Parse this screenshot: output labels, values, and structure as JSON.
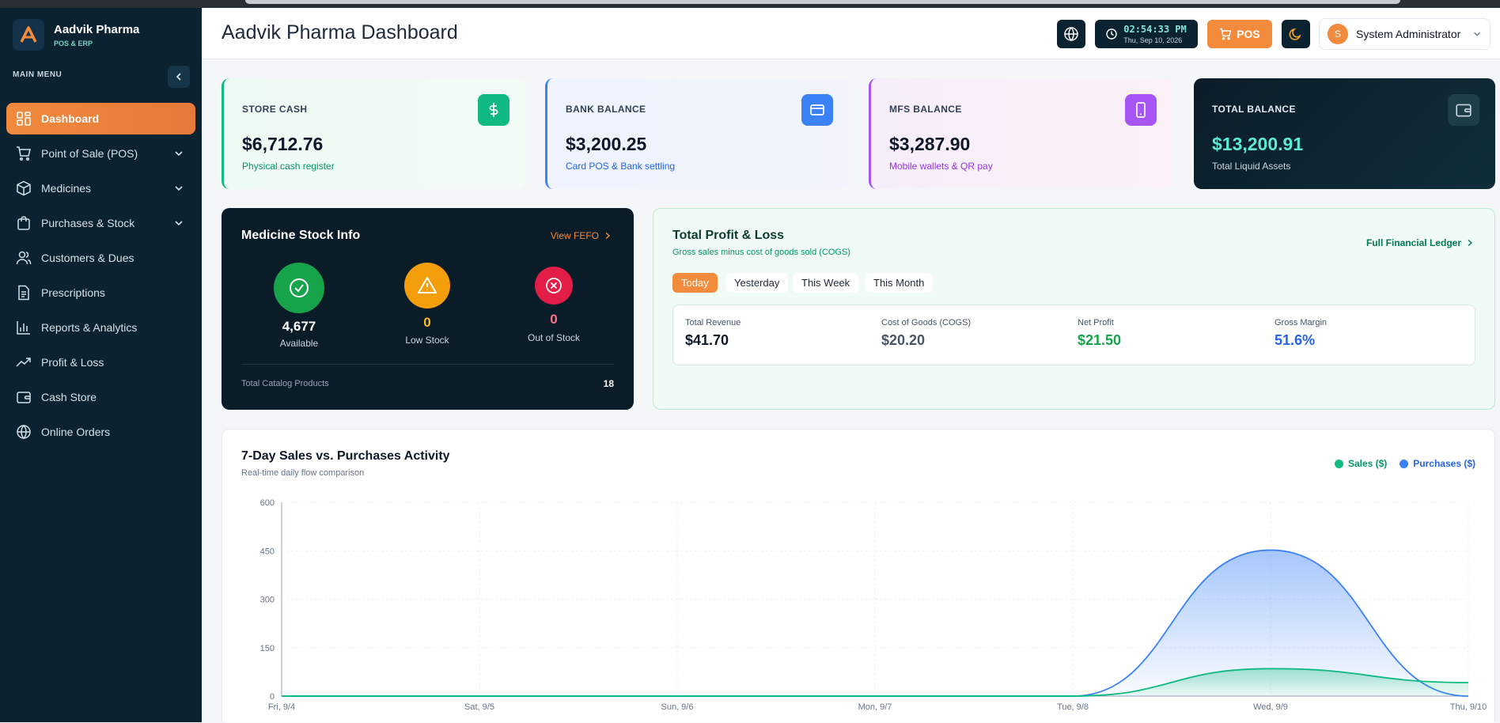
{
  "brand": {
    "name": "Aadvik Pharma",
    "sub": "POS & ERP"
  },
  "sidebar": {
    "menu_label": "MAIN MENU",
    "items": [
      {
        "label": "Dashboard",
        "icon": "grid-icon",
        "active": true
      },
      {
        "label": "Point of Sale (POS)",
        "icon": "cart-icon",
        "chevron": true
      },
      {
        "label": "Medicines",
        "icon": "box-icon",
        "chevron": true
      },
      {
        "label": "Purchases & Stock",
        "icon": "bag-icon",
        "chevron": true
      },
      {
        "label": "Customers & Dues",
        "icon": "users-icon"
      },
      {
        "label": "Prescriptions",
        "icon": "document-icon"
      },
      {
        "label": "Reports & Analytics",
        "icon": "bar-chart-icon"
      },
      {
        "label": "Profit & Loss",
        "icon": "trend-icon"
      },
      {
        "label": "Cash Store",
        "icon": "wallet-icon"
      },
      {
        "label": "Online Orders",
        "icon": "globe-icon"
      }
    ]
  },
  "header": {
    "title": "Aadvik Pharma Dashboard",
    "time": "02:54:33 PM",
    "date": "Thu, Sep 10, 2026",
    "pos_label": "POS",
    "user_initial": "S",
    "user_name": "System Administrator"
  },
  "balances": [
    {
      "label": "STORE CASH",
      "value": "$6,712.76",
      "sub": "Physical cash register",
      "icon": "dollar-icon",
      "accent": "#10b981"
    },
    {
      "label": "BANK BALANCE",
      "value": "$3,200.25",
      "sub": "Card POS & Bank settling",
      "icon": "card-icon",
      "accent": "#3b82f6"
    },
    {
      "label": "MFS BALANCE",
      "value": "$3,287.90",
      "sub": "Mobile wallets & QR pay",
      "icon": "phone-icon",
      "accent": "#a855f7"
    },
    {
      "label": "TOTAL BALANCE",
      "value": "$13,200.91",
      "sub": "Total Liquid Assets",
      "icon": "wallet-icon",
      "accent": "#5eead4"
    }
  ],
  "stock": {
    "title": "Medicine Stock Info",
    "link": "View FEFO",
    "available_value": "4,677",
    "available_label": "Available",
    "low_value": "0",
    "low_label": "Low Stock",
    "out_value": "0",
    "out_label": "Out of Stock",
    "catalog_label": "Total Catalog Products",
    "catalog_value": "18"
  },
  "pl": {
    "title": "Total Profit & Loss",
    "subtitle": "Gross sales minus cost of goods sold (COGS)",
    "link": "Full Financial Ledger",
    "tabs": [
      "Today",
      "Yesterday",
      "This Week",
      "This Month"
    ],
    "revenue_label": "Total Revenue",
    "revenue_value": "$41.70",
    "cogs_label": "Cost of Goods (COGS)",
    "cogs_value": "$20.20",
    "net_label": "Net Profit",
    "net_value": "$21.50",
    "margin_label": "Gross Margin",
    "margin_value": "51.6%"
  },
  "chart_data": {
    "type": "area",
    "title": "7-Day Sales vs. Purchases Activity",
    "subtitle": "Real-time daily flow comparison",
    "categories": [
      "Fri, 9/4",
      "Sat, 9/5",
      "Sun, 9/6",
      "Mon, 9/7",
      "Tue, 9/8",
      "Wed, 9/9",
      "Thu, 9/10"
    ],
    "series": [
      {
        "name": "Sales ($)",
        "color": "#10b981",
        "values": [
          0,
          0,
          0,
          0,
          0,
          85,
          42
        ]
      },
      {
        "name": "Purchases ($)",
        "color": "#3b82f6",
        "values": [
          0,
          0,
          0,
          0,
          0,
          452,
          0
        ]
      }
    ],
    "yticks": [
      "0",
      "150",
      "300",
      "450",
      "600"
    ],
    "ylim": [
      0,
      600
    ],
    "legend": "top-right",
    "grid": true
  }
}
